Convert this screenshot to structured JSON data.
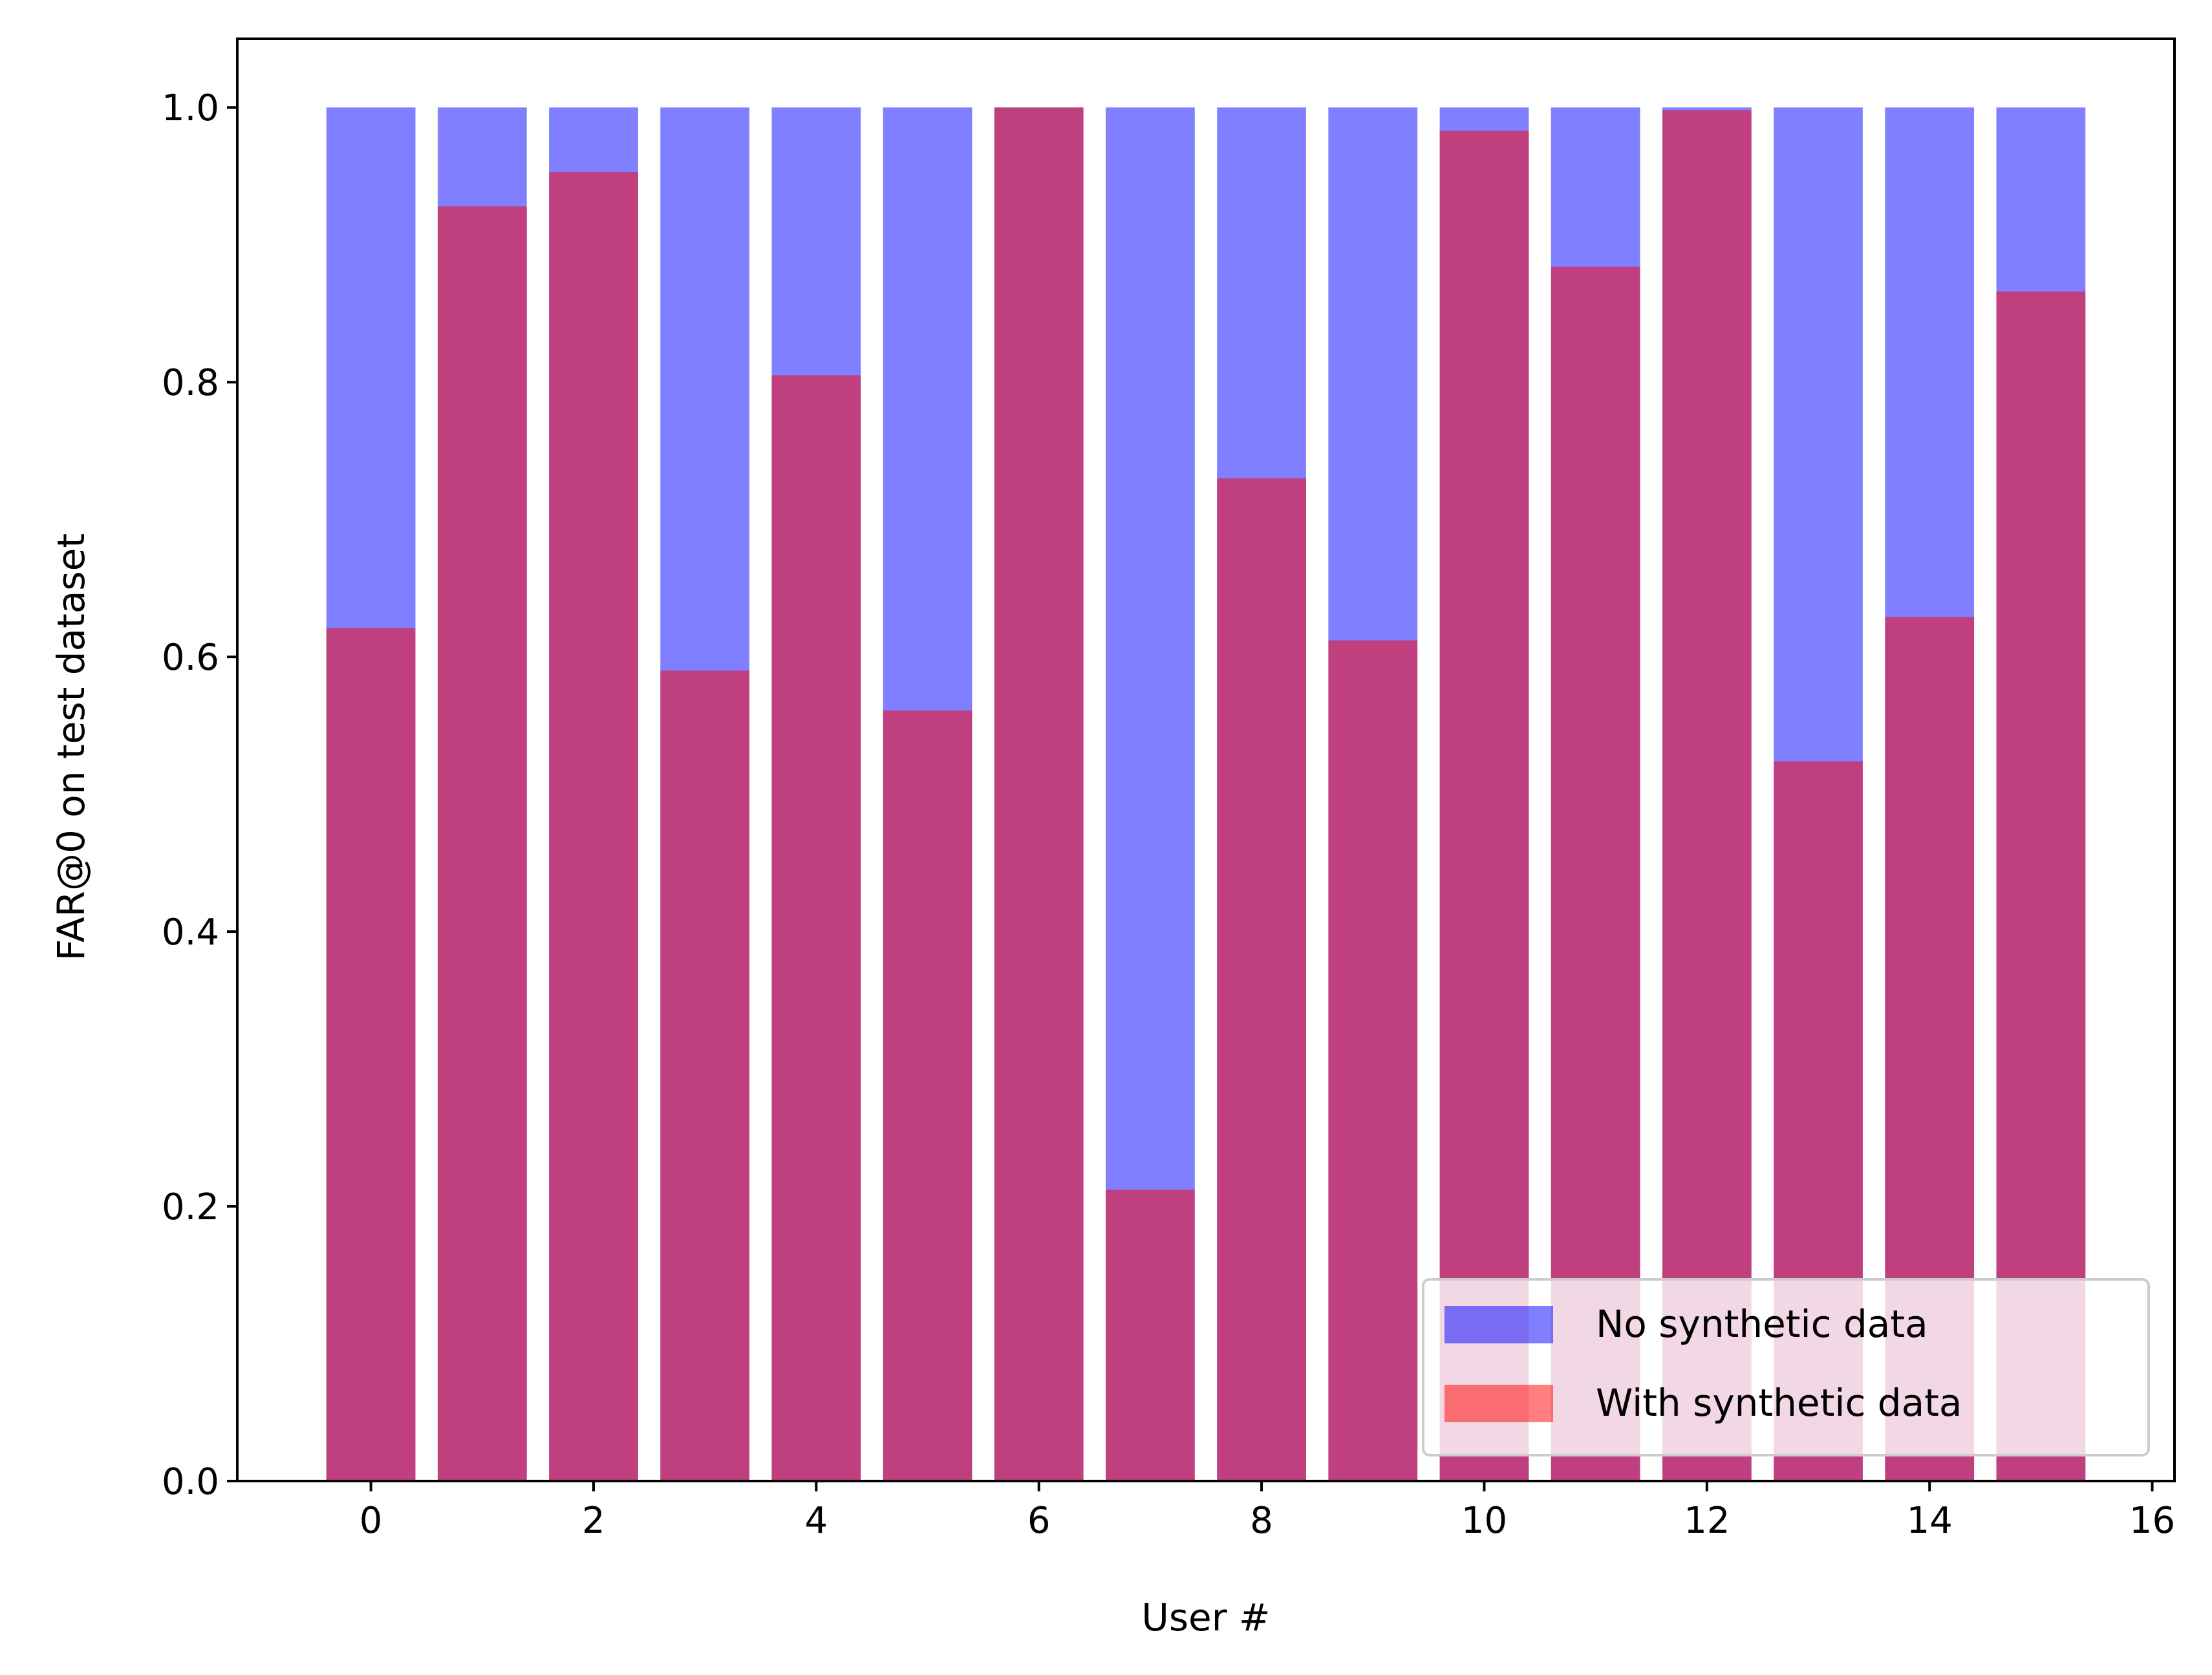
{
  "chart_data": {
    "type": "bar",
    "x": [
      0,
      1,
      2,
      3,
      4,
      5,
      6,
      7,
      8,
      9,
      10,
      11,
      12,
      13,
      14,
      15
    ],
    "series": [
      {
        "name": "No synthetic data",
        "color": "#0000ff",
        "alpha": 0.5,
        "values": [
          1.0,
          1.0,
          1.0,
          1.0,
          1.0,
          1.0,
          1.0,
          1.0,
          1.0,
          1.0,
          1.0,
          1.0,
          1.0,
          1.0,
          1.0,
          1.0
        ]
      },
      {
        "name": "With synthetic data",
        "color": "#ff0000",
        "alpha": 0.5,
        "values": [
          0.621,
          0.928,
          0.953,
          0.59,
          0.805,
          0.561,
          1.0,
          0.212,
          0.73,
          0.612,
          0.983,
          0.884,
          0.998,
          0.524,
          0.629,
          0.866
        ]
      }
    ],
    "xlabel": "User #",
    "ylabel": "FAR@0 on test dataset",
    "xlim": [
      -1.2,
      16.2
    ],
    "ylim": [
      0.0,
      1.05
    ],
    "xticks": [
      0,
      2,
      4,
      6,
      8,
      10,
      12,
      14,
      16
    ],
    "xtick_labels": [
      "0",
      "2",
      "4",
      "6",
      "8",
      "10",
      "12",
      "14",
      "16"
    ],
    "yticks": [
      0.0,
      0.2,
      0.4,
      0.6,
      0.8,
      1.0
    ],
    "ytick_labels": [
      "0.0",
      "0.2",
      "0.4",
      "0.6",
      "0.8",
      "1.0"
    ],
    "bar_width": 0.8,
    "grid": false,
    "legend_position": "lower-right"
  }
}
